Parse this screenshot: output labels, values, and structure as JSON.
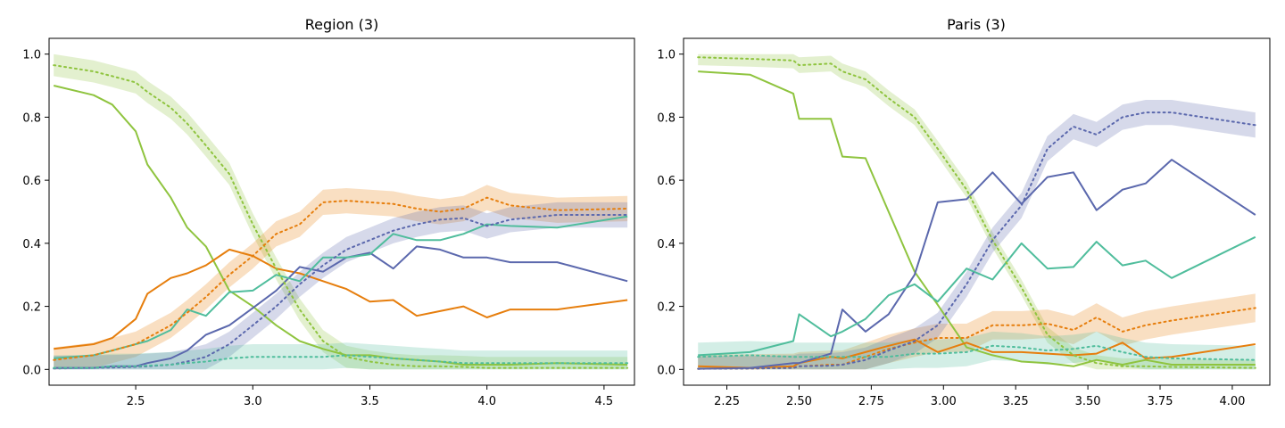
{
  "colors": {
    "green": "#8fc43f",
    "orange": "#e67e0d",
    "purple": "#5b68ad",
    "teal": "#4fbd9c"
  },
  "chart_data": [
    {
      "type": "line",
      "title": "Region (3)",
      "xlim": [
        2.13,
        4.63
      ],
      "ylim": [
        -0.05,
        1.05
      ],
      "xticks": [
        2.5,
        3.0,
        3.5,
        4.0,
        4.5
      ],
      "xtick_labels": [
        "2.5",
        "3.0",
        "3.5",
        "4.0",
        "4.5"
      ],
      "yticks": [
        0.0,
        0.2,
        0.4,
        0.6,
        0.8,
        1.0
      ],
      "ytick_labels": [
        "0.0",
        "0.2",
        "0.4",
        "0.6",
        "0.8",
        "1.0"
      ],
      "series": [
        {
          "name": "green solid",
          "color": "green",
          "style": "solid",
          "x": [
            2.15,
            2.32,
            2.4,
            2.5,
            2.55,
            2.65,
            2.72,
            2.8,
            2.9,
            3.0,
            3.1,
            3.2,
            3.3,
            3.4,
            3.5,
            3.6,
            3.7,
            3.8,
            3.9,
            4.0,
            4.1,
            4.3,
            4.6
          ],
          "y": [
            0.9,
            0.87,
            0.84,
            0.755,
            0.65,
            0.545,
            0.45,
            0.39,
            0.25,
            0.2,
            0.14,
            0.09,
            0.065,
            0.045,
            0.045,
            0.035,
            0.03,
            0.025,
            0.015,
            0.015,
            0.015,
            0.02,
            0.015
          ]
        },
        {
          "name": "orange solid",
          "color": "orange",
          "style": "solid",
          "x": [
            2.15,
            2.32,
            2.4,
            2.5,
            2.55,
            2.65,
            2.72,
            2.8,
            2.9,
            3.0,
            3.1,
            3.2,
            3.3,
            3.4,
            3.5,
            3.6,
            3.7,
            3.8,
            3.9,
            4.0,
            4.1,
            4.3,
            4.6
          ],
          "y": [
            0.065,
            0.08,
            0.1,
            0.16,
            0.24,
            0.29,
            0.305,
            0.33,
            0.38,
            0.36,
            0.32,
            0.305,
            0.28,
            0.255,
            0.215,
            0.22,
            0.17,
            0.185,
            0.2,
            0.165,
            0.19,
            0.19,
            0.22
          ]
        },
        {
          "name": "purple solid",
          "color": "purple",
          "style": "solid",
          "x": [
            2.15,
            2.32,
            2.4,
            2.5,
            2.55,
            2.65,
            2.72,
            2.8,
            2.9,
            3.0,
            3.1,
            3.2,
            3.3,
            3.4,
            3.5,
            3.6,
            3.7,
            3.8,
            3.9,
            4.0,
            4.1,
            4.3,
            4.6
          ],
          "y": [
            0.005,
            0.005,
            0.01,
            0.01,
            0.02,
            0.035,
            0.06,
            0.11,
            0.14,
            0.195,
            0.25,
            0.325,
            0.31,
            0.355,
            0.37,
            0.32,
            0.39,
            0.38,
            0.355,
            0.355,
            0.34,
            0.34,
            0.28
          ]
        },
        {
          "name": "teal solid",
          "color": "teal",
          "style": "solid",
          "x": [
            2.15,
            2.32,
            2.4,
            2.5,
            2.55,
            2.65,
            2.72,
            2.8,
            2.9,
            3.0,
            3.1,
            3.2,
            3.3,
            3.4,
            3.5,
            3.6,
            3.7,
            3.8,
            3.9,
            4.0,
            4.1,
            4.3,
            4.6
          ],
          "y": [
            0.035,
            0.045,
            0.06,
            0.08,
            0.09,
            0.125,
            0.19,
            0.17,
            0.245,
            0.25,
            0.3,
            0.28,
            0.355,
            0.355,
            0.365,
            0.43,
            0.41,
            0.41,
            0.43,
            0.46,
            0.455,
            0.45,
            0.485
          ]
        },
        {
          "name": "green dotted",
          "color": "green",
          "style": "dotted",
          "band": 0.035,
          "x": [
            2.15,
            2.32,
            2.4,
            2.5,
            2.55,
            2.65,
            2.72,
            2.8,
            2.9,
            3.0,
            3.1,
            3.2,
            3.3,
            3.4,
            3.5,
            3.6,
            3.7,
            3.8,
            3.9,
            4.0,
            4.1,
            4.3,
            4.6
          ],
          "y": [
            0.965,
            0.945,
            0.93,
            0.91,
            0.88,
            0.83,
            0.78,
            0.71,
            0.62,
            0.46,
            0.32,
            0.19,
            0.09,
            0.04,
            0.025,
            0.015,
            0.01,
            0.01,
            0.008,
            0.005,
            0.005,
            0.005,
            0.005
          ]
        },
        {
          "name": "orange dotted",
          "color": "orange",
          "style": "dotted",
          "band": 0.04,
          "x": [
            2.15,
            2.32,
            2.4,
            2.5,
            2.55,
            2.65,
            2.72,
            2.8,
            2.9,
            3.0,
            3.1,
            3.2,
            3.3,
            3.4,
            3.5,
            3.6,
            3.7,
            3.8,
            3.9,
            4.0,
            4.1,
            4.3,
            4.6
          ],
          "y": [
            0.03,
            0.045,
            0.06,
            0.08,
            0.1,
            0.14,
            0.18,
            0.23,
            0.3,
            0.36,
            0.43,
            0.46,
            0.53,
            0.535,
            0.53,
            0.525,
            0.51,
            0.5,
            0.51,
            0.545,
            0.52,
            0.505,
            0.51
          ]
        },
        {
          "name": "purple dotted",
          "color": "purple",
          "style": "dotted",
          "band": 0.04,
          "x": [
            2.15,
            2.32,
            2.4,
            2.5,
            2.55,
            2.65,
            2.72,
            2.8,
            2.9,
            3.0,
            3.1,
            3.2,
            3.3,
            3.4,
            3.5,
            3.6,
            3.7,
            3.8,
            3.9,
            4.0,
            4.1,
            4.3,
            4.6
          ],
          "y": [
            0.003,
            0.005,
            0.006,
            0.008,
            0.01,
            0.015,
            0.025,
            0.04,
            0.08,
            0.14,
            0.2,
            0.27,
            0.33,
            0.38,
            0.41,
            0.44,
            0.46,
            0.475,
            0.48,
            0.455,
            0.475,
            0.49,
            0.49
          ]
        },
        {
          "name": "teal dotted",
          "color": "teal",
          "style": "dotted",
          "band": 0.04,
          "x": [
            2.15,
            2.32,
            2.4,
            2.5,
            2.55,
            2.65,
            2.72,
            2.8,
            2.9,
            3.0,
            3.1,
            3.2,
            3.3,
            3.4,
            3.5,
            3.6,
            3.7,
            3.8,
            3.9,
            4.0,
            4.1,
            4.3,
            4.6
          ],
          "y": [
            0.005,
            0.005,
            0.01,
            0.01,
            0.012,
            0.015,
            0.02,
            0.025,
            0.035,
            0.04,
            0.04,
            0.04,
            0.04,
            0.045,
            0.04,
            0.035,
            0.03,
            0.025,
            0.02,
            0.02,
            0.02,
            0.02,
            0.02
          ]
        }
      ]
    },
    {
      "type": "line",
      "title": "Paris (3)",
      "xlim": [
        2.1,
        4.13
      ],
      "ylim": [
        -0.05,
        1.05
      ],
      "xticks": [
        2.25,
        2.5,
        2.75,
        3.0,
        3.25,
        3.5,
        3.75,
        4.0
      ],
      "xtick_labels": [
        "2.25",
        "2.50",
        "2.75",
        "3.00",
        "3.25",
        "3.50",
        "3.75",
        "4.00"
      ],
      "yticks": [
        0.0,
        0.2,
        0.4,
        0.6,
        0.8,
        1.0
      ],
      "ytick_labels": [
        "0.0",
        "0.2",
        "0.4",
        "0.6",
        "0.8",
        "1.0"
      ],
      "series": [
        {
          "name": "green solid",
          "color": "green",
          "style": "solid",
          "x": [
            2.15,
            2.33,
            2.48,
            2.5,
            2.61,
            2.65,
            2.73,
            2.81,
            2.9,
            2.98,
            3.08,
            3.17,
            3.27,
            3.36,
            3.45,
            3.53,
            3.62,
            3.7,
            3.79,
            4.08
          ],
          "y": [
            0.945,
            0.935,
            0.875,
            0.795,
            0.795,
            0.675,
            0.67,
            0.5,
            0.31,
            0.205,
            0.07,
            0.045,
            0.025,
            0.02,
            0.01,
            0.03,
            0.015,
            0.03,
            0.015,
            0.015
          ]
        },
        {
          "name": "orange solid",
          "color": "orange",
          "style": "solid",
          "x": [
            2.15,
            2.33,
            2.48,
            2.5,
            2.61,
            2.65,
            2.73,
            2.81,
            2.9,
            2.98,
            3.08,
            3.17,
            3.27,
            3.36,
            3.45,
            3.53,
            3.62,
            3.7,
            3.79,
            4.08
          ],
          "y": [
            0.01,
            0.005,
            0.01,
            0.02,
            0.04,
            0.035,
            0.055,
            0.075,
            0.095,
            0.055,
            0.085,
            0.055,
            0.055,
            0.05,
            0.045,
            0.05,
            0.085,
            0.035,
            0.04,
            0.08
          ]
        },
        {
          "name": "purple solid",
          "color": "purple",
          "style": "solid",
          "x": [
            2.15,
            2.33,
            2.48,
            2.5,
            2.61,
            2.65,
            2.73,
            2.81,
            2.9,
            2.98,
            3.08,
            3.17,
            3.27,
            3.36,
            3.45,
            3.53,
            3.62,
            3.7,
            3.79,
            4.08
          ],
          "y": [
            0.002,
            0.005,
            0.02,
            0.02,
            0.05,
            0.19,
            0.12,
            0.175,
            0.3,
            0.53,
            0.54,
            0.625,
            0.525,
            0.61,
            0.625,
            0.505,
            0.57,
            0.59,
            0.665,
            0.49
          ]
        },
        {
          "name": "teal solid",
          "color": "teal",
          "style": "solid",
          "x": [
            2.15,
            2.33,
            2.48,
            2.5,
            2.61,
            2.65,
            2.73,
            2.81,
            2.9,
            2.98,
            3.08,
            3.17,
            3.27,
            3.36,
            3.45,
            3.53,
            3.62,
            3.7,
            3.79,
            4.08
          ],
          "y": [
            0.045,
            0.055,
            0.09,
            0.175,
            0.105,
            0.12,
            0.16,
            0.235,
            0.27,
            0.215,
            0.32,
            0.285,
            0.4,
            0.32,
            0.325,
            0.405,
            0.33,
            0.345,
            0.29,
            0.42
          ]
        },
        {
          "name": "green dotted",
          "color": "green",
          "style": "dotted",
          "band": 0.025,
          "x": [
            2.15,
            2.33,
            2.48,
            2.5,
            2.61,
            2.65,
            2.73,
            2.81,
            2.9,
            2.98,
            3.08,
            3.17,
            3.27,
            3.36,
            3.45,
            3.53,
            3.62,
            3.7,
            3.79,
            4.08
          ],
          "y": [
            0.99,
            0.985,
            0.98,
            0.965,
            0.97,
            0.945,
            0.92,
            0.86,
            0.8,
            0.7,
            0.57,
            0.41,
            0.26,
            0.11,
            0.045,
            0.02,
            0.01,
            0.01,
            0.008,
            0.005
          ]
        },
        {
          "name": "orange dotted",
          "color": "orange",
          "style": "dotted",
          "band": 0.045,
          "x": [
            2.15,
            2.33,
            2.48,
            2.5,
            2.61,
            2.65,
            2.73,
            2.81,
            2.9,
            2.98,
            3.08,
            3.17,
            3.27,
            3.36,
            3.45,
            3.53,
            3.62,
            3.7,
            3.79,
            4.08
          ],
          "y": [
            0.002,
            0.003,
            0.005,
            0.01,
            0.015,
            0.015,
            0.04,
            0.065,
            0.085,
            0.1,
            0.1,
            0.14,
            0.14,
            0.145,
            0.125,
            0.165,
            0.12,
            0.14,
            0.155,
            0.195
          ]
        },
        {
          "name": "purple dotted",
          "color": "purple",
          "style": "dotted",
          "band": 0.04,
          "x": [
            2.15,
            2.33,
            2.48,
            2.5,
            2.61,
            2.65,
            2.73,
            2.81,
            2.9,
            2.98,
            3.08,
            3.17,
            3.27,
            3.36,
            3.45,
            3.53,
            3.62,
            3.7,
            3.79,
            4.08
          ],
          "y": [
            0.002,
            0.003,
            0.005,
            0.01,
            0.012,
            0.015,
            0.03,
            0.06,
            0.09,
            0.14,
            0.27,
            0.41,
            0.52,
            0.7,
            0.77,
            0.745,
            0.8,
            0.815,
            0.815,
            0.775
          ]
        },
        {
          "name": "teal dotted",
          "color": "teal",
          "style": "dotted",
          "band": 0.045,
          "x": [
            2.15,
            2.33,
            2.48,
            2.5,
            2.61,
            2.65,
            2.73,
            2.81,
            2.9,
            2.98,
            3.08,
            3.17,
            3.27,
            3.36,
            3.45,
            3.53,
            3.62,
            3.7,
            3.79,
            4.08
          ],
          "y": [
            0.04,
            0.045,
            0.04,
            0.04,
            0.04,
            0.04,
            0.04,
            0.04,
            0.05,
            0.05,
            0.055,
            0.075,
            0.07,
            0.06,
            0.065,
            0.075,
            0.055,
            0.04,
            0.035,
            0.03
          ]
        }
      ]
    }
  ]
}
